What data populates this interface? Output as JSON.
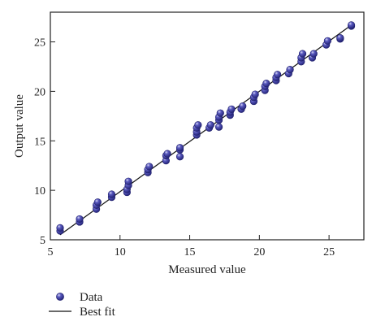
{
  "chart_data": {
    "type": "scatter",
    "xlabel": "Measured value",
    "ylabel": "Output value",
    "xlim": [
      5,
      27.5
    ],
    "ylim": [
      5,
      28
    ],
    "xticks": [
      5,
      10,
      15,
      20,
      25
    ],
    "yticks": [
      5,
      10,
      15,
      20,
      25
    ],
    "grid": false,
    "legend_position": "bottom-left, below plot",
    "series": [
      {
        "name": "Data",
        "kind": "points",
        "color": "#3a3a9a",
        "points": [
          [
            5.7,
            5.9
          ],
          [
            5.7,
            6.2
          ],
          [
            7.1,
            6.8
          ],
          [
            7.1,
            7.1
          ],
          [
            8.3,
            8.1
          ],
          [
            8.3,
            8.5
          ],
          [
            8.4,
            8.8
          ],
          [
            9.4,
            9.3
          ],
          [
            9.4,
            9.6
          ],
          [
            10.5,
            9.8
          ],
          [
            10.5,
            10.1
          ],
          [
            10.6,
            10.5
          ],
          [
            10.6,
            10.9
          ],
          [
            12.0,
            11.8
          ],
          [
            12.0,
            12.1
          ],
          [
            12.1,
            12.4
          ],
          [
            13.3,
            13.0
          ],
          [
            13.3,
            13.5
          ],
          [
            13.4,
            13.7
          ],
          [
            14.3,
            13.4
          ],
          [
            14.3,
            14.1
          ],
          [
            14.3,
            14.3
          ],
          [
            15.5,
            15.6
          ],
          [
            15.5,
            15.9
          ],
          [
            15.5,
            16.3
          ],
          [
            15.6,
            16.6
          ],
          [
            16.4,
            16.3
          ],
          [
            16.5,
            16.6
          ],
          [
            17.1,
            16.4
          ],
          [
            17.1,
            17.1
          ],
          [
            17.1,
            17.4
          ],
          [
            17.2,
            17.8
          ],
          [
            17.9,
            17.6
          ],
          [
            17.9,
            17.9
          ],
          [
            18.0,
            18.2
          ],
          [
            18.7,
            18.2
          ],
          [
            18.8,
            18.5
          ],
          [
            19.6,
            19.0
          ],
          [
            19.6,
            19.4
          ],
          [
            19.7,
            19.7
          ],
          [
            20.4,
            20.1
          ],
          [
            20.4,
            20.5
          ],
          [
            20.5,
            20.8
          ],
          [
            21.2,
            21.1
          ],
          [
            21.2,
            21.4
          ],
          [
            21.3,
            21.7
          ],
          [
            22.1,
            21.8
          ],
          [
            22.2,
            22.2
          ],
          [
            23.0,
            23.0
          ],
          [
            23.0,
            23.4
          ],
          [
            23.1,
            23.8
          ],
          [
            23.8,
            23.4
          ],
          [
            23.9,
            23.8
          ],
          [
            24.8,
            24.7
          ],
          [
            24.9,
            25.1
          ],
          [
            25.8,
            25.3
          ],
          [
            25.8,
            25.4
          ],
          [
            26.6,
            26.6
          ],
          [
            26.6,
            26.7
          ]
        ]
      },
      {
        "name": "Best fit",
        "kind": "line",
        "color": "#111111",
        "x": [
          5.7,
          26.7
        ],
        "y": [
          5.5,
          26.8
        ]
      }
    ]
  }
}
